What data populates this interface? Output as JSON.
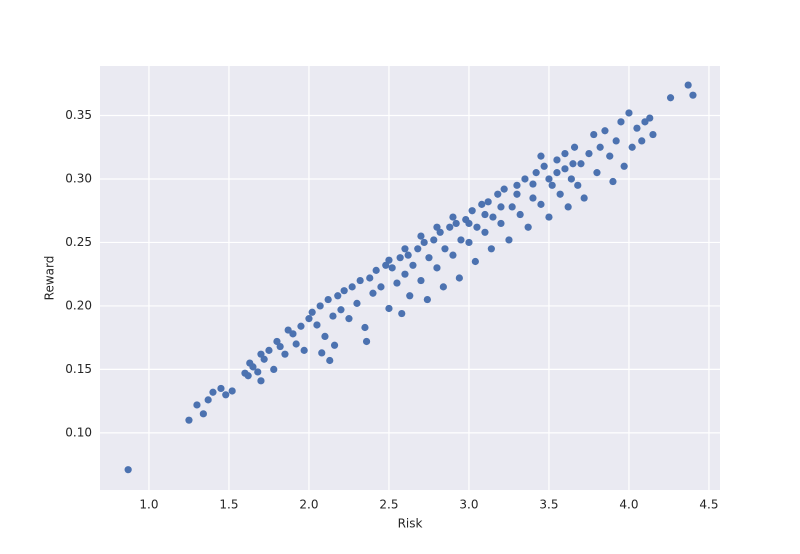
{
  "chart_data": {
    "type": "scatter",
    "x_label": "Risk",
    "y_label": "Reward",
    "color": "#4c72b0",
    "grid": true,
    "xlim": [
      0.694,
      4.569
    ],
    "ylim": [
      0.055,
      0.389
    ],
    "xticks": [
      {
        "value": 1,
        "label": "1.0"
      },
      1.5,
      {
        "value": 2,
        "label": "2.0"
      },
      2.5,
      {
        "value": 3,
        "label": "3.0"
      },
      3.5,
      {
        "value": 4,
        "label": "4.0"
      },
      4.5
    ],
    "yticks": [
      {
        "value": 0.1,
        "label": "0.10"
      },
      0.15,
      {
        "value": 0.2,
        "label": "0.20"
      },
      0.25,
      {
        "value": 0.3,
        "label": "0.30"
      },
      0.35
    ],
    "x": [
      0.87,
      1.25,
      1.3,
      1.34,
      1.37,
      1.4,
      1.45,
      1.48,
      1.52,
      1.6,
      1.62,
      1.63,
      1.65,
      1.68,
      1.7,
      1.7,
      1.72,
      1.75,
      1.78,
      1.8,
      1.82,
      1.85,
      1.87,
      1.9,
      1.92,
      1.95,
      1.97,
      2.0,
      2.02,
      2.05,
      2.07,
      2.08,
      2.1,
      2.12,
      2.13,
      2.15,
      2.16,
      2.18,
      2.2,
      2.22,
      2.25,
      2.27,
      2.3,
      2.32,
      2.35,
      2.36,
      2.38,
      2.4,
      2.42,
      2.45,
      2.48,
      2.5,
      2.52,
      2.55,
      2.57,
      2.58,
      2.6,
      2.62,
      2.63,
      2.65,
      2.68,
      2.7,
      2.72,
      2.74,
      2.75,
      2.78,
      2.8,
      2.82,
      2.84,
      2.85,
      2.88,
      2.9,
      2.92,
      2.94,
      2.95,
      2.98,
      3.0,
      3.02,
      3.04,
      3.05,
      3.08,
      3.1,
      3.12,
      3.14,
      3.15,
      3.18,
      3.2,
      3.22,
      3.25,
      3.27,
      3.3,
      3.32,
      3.35,
      3.37,
      3.4,
      3.42,
      3.45,
      3.47,
      3.5,
      3.52,
      3.55,
      3.57,
      3.6,
      3.62,
      3.64,
      3.66,
      3.68,
      3.7,
      3.72,
      3.75,
      3.78,
      3.8,
      3.82,
      3.85,
      3.88,
      3.9,
      3.92,
      3.95,
      3.97,
      4.0,
      4.02,
      4.05,
      4.08,
      4.1,
      4.13,
      4.15,
      4.26,
      4.37,
      4.4,
      2.9,
      3.0,
      3.1,
      3.2,
      3.3,
      3.4,
      3.5,
      3.6,
      2.8,
      2.7,
      2.6,
      2.5,
      3.45,
      3.55,
      3.65
    ],
    "y": [
      0.071,
      0.11,
      0.122,
      0.115,
      0.126,
      0.132,
      0.135,
      0.13,
      0.133,
      0.147,
      0.145,
      0.155,
      0.152,
      0.148,
      0.141,
      0.162,
      0.158,
      0.165,
      0.15,
      0.172,
      0.168,
      0.162,
      0.181,
      0.178,
      0.17,
      0.184,
      0.165,
      0.19,
      0.195,
      0.185,
      0.2,
      0.163,
      0.176,
      0.205,
      0.157,
      0.192,
      0.169,
      0.208,
      0.197,
      0.212,
      0.19,
      0.215,
      0.202,
      0.22,
      0.183,
      0.172,
      0.222,
      0.21,
      0.228,
      0.215,
      0.232,
      0.198,
      0.23,
      0.218,
      0.238,
      0.194,
      0.225,
      0.24,
      0.208,
      0.232,
      0.245,
      0.22,
      0.25,
      0.205,
      0.238,
      0.252,
      0.23,
      0.258,
      0.215,
      0.245,
      0.262,
      0.24,
      0.265,
      0.222,
      0.252,
      0.268,
      0.25,
      0.275,
      0.235,
      0.262,
      0.28,
      0.258,
      0.282,
      0.245,
      0.27,
      0.288,
      0.265,
      0.292,
      0.252,
      0.278,
      0.295,
      0.272,
      0.3,
      0.262,
      0.285,
      0.305,
      0.28,
      0.31,
      0.27,
      0.295,
      0.315,
      0.288,
      0.32,
      0.278,
      0.3,
      0.325,
      0.295,
      0.312,
      0.285,
      0.32,
      0.335,
      0.305,
      0.325,
      0.338,
      0.318,
      0.298,
      0.33,
      0.345,
      0.31,
      0.352,
      0.325,
      0.34,
      0.33,
      0.345,
      0.348,
      0.335,
      0.364,
      0.374,
      0.366,
      0.27,
      0.265,
      0.272,
      0.278,
      0.288,
      0.296,
      0.3,
      0.308,
      0.262,
      0.255,
      0.245,
      0.236,
      0.318,
      0.305,
      0.312
    ]
  }
}
